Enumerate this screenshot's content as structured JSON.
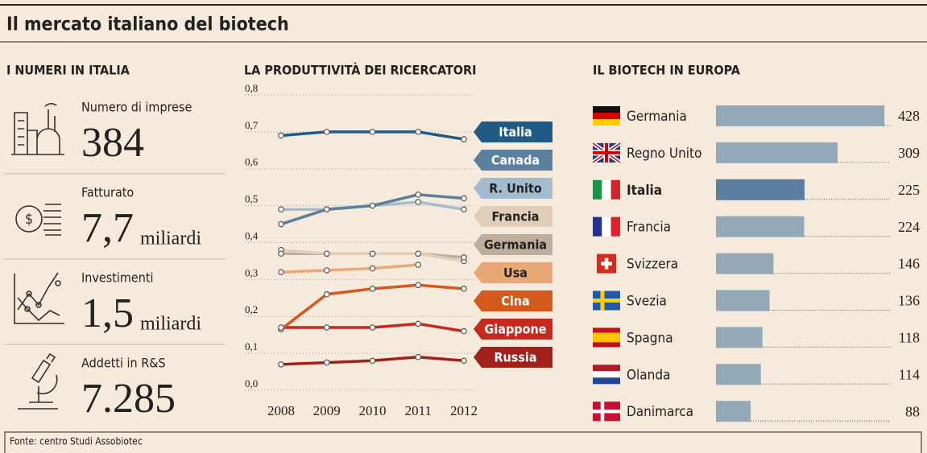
{
  "title": "Il mercato italiano del biotech",
  "source": "Fonte: centro Studi Assobiotec",
  "numbers": {
    "title": "I NUMERI IN ITALIA",
    "items": [
      {
        "label": "Numero di imprese",
        "value": "384"
      },
      {
        "label": "Fatturato",
        "value": "7,7",
        "unit": "miliardi"
      },
      {
        "label": "Investimenti",
        "value": "1,5",
        "unit": "miliardi"
      },
      {
        "label": "Addetti in R&S",
        "value": "7.285"
      }
    ]
  },
  "chart_data": [
    {
      "type": "line",
      "title": "LA PRODUTTIVITÀ DEI RICERCATORI",
      "categories": [
        "2008",
        "2009",
        "2010",
        "2011",
        "2012"
      ],
      "ylim": [
        0,
        0.8
      ],
      "yticks": [
        {
          "value": 0,
          "label": "0,0"
        },
        {
          "value": 0.1,
          "label": "0,1"
        },
        {
          "value": 0.2,
          "label": "0,2"
        },
        {
          "value": 0.3,
          "label": "0,3"
        },
        {
          "value": 0.4,
          "label": "0,4"
        },
        {
          "value": 0.5,
          "label": "0,5"
        },
        {
          "value": 0.6,
          "label": "0,6"
        },
        {
          "value": 0.7,
          "label": "0,7"
        },
        {
          "value": 0.8,
          "label": "0,8"
        }
      ],
      "grid": true,
      "series": [
        {
          "name": "Italia",
          "color": "#1f5b85",
          "values": [
            0.69,
            0.7,
            0.7,
            0.7,
            0.68
          ]
        },
        {
          "name": "Canada",
          "color": "#5b7f9e",
          "values": [
            0.45,
            0.49,
            0.5,
            0.53,
            0.52
          ]
        },
        {
          "name": "R. Unito",
          "color": "#a4bccf",
          "values": [
            0.49,
            0.49,
            0.5,
            0.51,
            0.49
          ]
        },
        {
          "name": "Francia",
          "color": "#e2cdb8",
          "values": [
            0.38,
            0.37,
            0.37,
            0.37,
            0.35
          ]
        },
        {
          "name": "Germania",
          "color": "#bfae9b",
          "values": [
            0.37,
            0.37,
            0.37,
            0.37,
            0.36
          ]
        },
        {
          "name": "Usa",
          "color": "#eaa879",
          "values": [
            0.32,
            0.325,
            0.33,
            0.34,
            null
          ]
        },
        {
          "name": "Cina",
          "color": "#d35a1a",
          "values": [
            0.165,
            0.26,
            0.275,
            0.285,
            0.275
          ]
        },
        {
          "name": "Giappone",
          "color": "#c8291f",
          "values": [
            0.17,
            0.17,
            0.17,
            0.18,
            0.16
          ]
        },
        {
          "name": "Russia",
          "color": "#a0201a",
          "values": [
            0.07,
            0.075,
            0.08,
            0.09,
            0.08
          ]
        }
      ]
    },
    {
      "type": "barh",
      "title": "IL BIOTECH IN EUROPA",
      "categories": [
        "Germania",
        "Regno Unito",
        "Italia",
        "Francia",
        "Svizzera",
        "Svezia",
        "Spagna",
        "Olanda",
        "Danimarca"
      ],
      "values": [
        428,
        309,
        225,
        224,
        146,
        136,
        118,
        114,
        88
      ],
      "color": "#94a9b8",
      "highlight": 2,
      "highlight_color": "#5b7f9e",
      "xlim": [
        0,
        440
      ]
    }
  ]
}
